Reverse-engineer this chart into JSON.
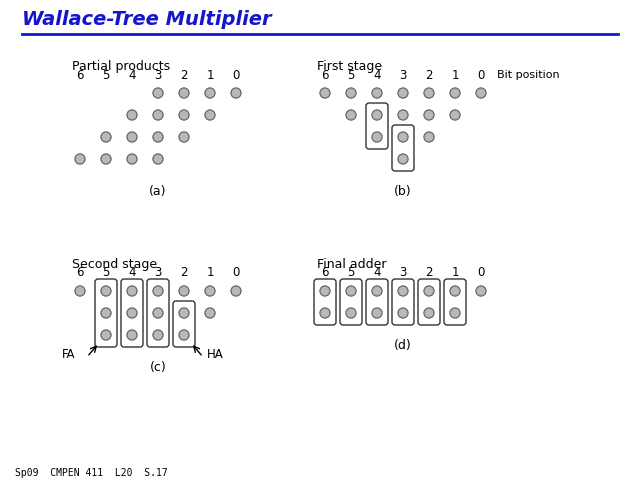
{
  "title": "Wallace-Tree Multiplier",
  "title_color": "#1515cc",
  "bg_color": "#ffffff",
  "subtitle_bottom": "Sp09  CMPEN 411  L20  S.17",
  "col_step": 26,
  "row_step": 22,
  "dot_r": 5,
  "sections": {
    "a": {
      "label": "Partial products",
      "sublabel": "(a)",
      "ox": 80,
      "oy_label": 60,
      "oy_bits": 76,
      "oy_row0": 93,
      "dot_rows": [
        [
          3,
          2,
          1,
          0
        ],
        [
          4,
          3,
          2,
          1
        ],
        [
          5,
          4,
          3,
          2
        ],
        [
          6,
          5,
          4,
          3
        ]
      ],
      "boxes": []
    },
    "b": {
      "label": "First stage",
      "sublabel": "(b)",
      "bit_extra": "Bit position",
      "ox": 325,
      "oy_label": 60,
      "oy_bits": 76,
      "oy_row0": 93,
      "dot_rows": [
        [
          6,
          5,
          4,
          3,
          2,
          1,
          0
        ],
        [
          5,
          4,
          3,
          2,
          1
        ],
        [
          4,
          3,
          2
        ],
        [
          3
        ]
      ],
      "boxes": [
        {
          "col": 4,
          "r0": 1,
          "r1": 2
        },
        {
          "col": 3,
          "r0": 2,
          "r1": 3
        }
      ]
    },
    "c": {
      "label": "Second stage",
      "sublabel": "(c)",
      "ox": 80,
      "oy_label": 258,
      "oy_bits": 274,
      "oy_row0": 291,
      "dot_rows": [
        [
          6,
          5,
          4,
          3,
          2,
          1,
          0
        ],
        [
          5,
          4,
          3,
          2,
          1
        ],
        [
          5,
          4,
          3,
          2
        ]
      ],
      "boxes": [
        {
          "col": 5,
          "r0": 0,
          "r1": 2
        },
        {
          "col": 4,
          "r0": 0,
          "r1": 2
        },
        {
          "col": 3,
          "r0": 0,
          "r1": 2
        },
        {
          "col": 2,
          "r0": 1,
          "r1": 2
        }
      ],
      "fa_col": 5,
      "ha_col": 2
    },
    "d": {
      "label": "Final adder",
      "sublabel": "(d)",
      "ox": 325,
      "oy_label": 258,
      "oy_bits": 274,
      "oy_row0": 291,
      "dot_rows": [
        [
          6,
          5,
          4,
          3,
          2,
          1,
          0
        ],
        [
          6,
          5,
          4,
          3,
          2,
          1
        ]
      ],
      "boxes": [
        {
          "col": 6,
          "r0": 0,
          "r1": 1
        },
        {
          "col": 5,
          "r0": 0,
          "r1": 1
        },
        {
          "col": 4,
          "r0": 0,
          "r1": 1
        },
        {
          "col": 3,
          "r0": 0,
          "r1": 1
        },
        {
          "col": 2,
          "r0": 0,
          "r1": 1
        },
        {
          "col": 1,
          "r0": 0,
          "r1": 1
        }
      ]
    }
  }
}
